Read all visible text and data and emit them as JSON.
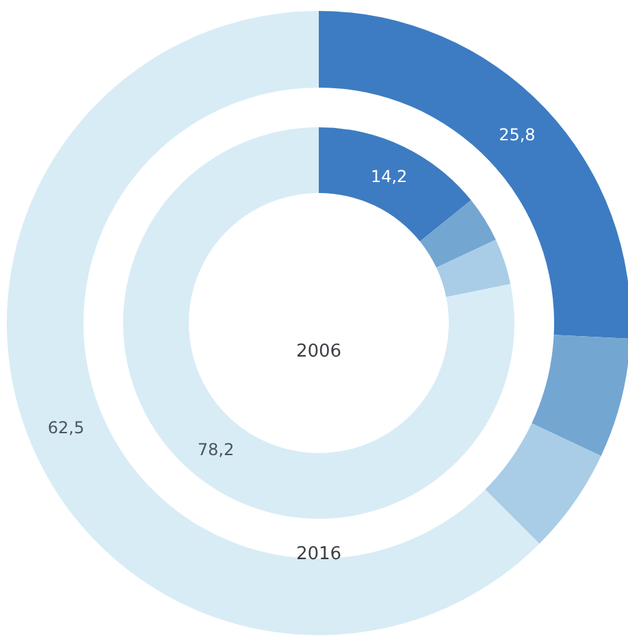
{
  "chart_data": [
    {
      "type": "donut",
      "title": "2016",
      "categories": [
        null,
        null,
        null,
        null
      ],
      "values": [
        25.8,
        6.2,
        5.5,
        62.5
      ],
      "colors": [
        "#3d7cc2",
        "#74a6d2",
        "#a9cde6",
        "#d8ecf6"
      ],
      "value_labels": [
        "25,8",
        null,
        null,
        "62,5"
      ]
    },
    {
      "type": "donut",
      "title": "2006",
      "categories": [
        null,
        null,
        null,
        null
      ],
      "values": [
        14.2,
        3.8,
        3.8,
        78.2
      ],
      "colors": [
        "#3d7cc2",
        "#74a6d2",
        "#a9cde6",
        "#d8ecf6"
      ],
      "value_labels": [
        "14,2",
        null,
        null,
        "78,2"
      ]
    }
  ]
}
